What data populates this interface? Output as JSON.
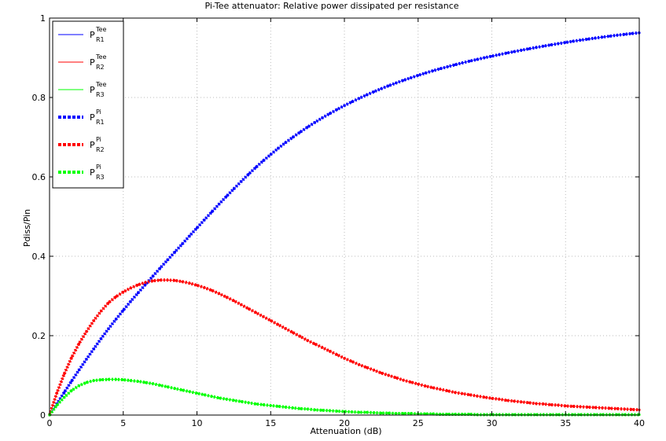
{
  "chart_data": {
    "type": "line",
    "title": "Pi-Tee attenuator: Relative power dissipated per resistance",
    "xlabel": "Attenuation (dB)",
    "ylabel": "Pdiss/Pin",
    "xlim": [
      0,
      40
    ],
    "ylim": [
      0,
      1
    ],
    "xticks": [
      0,
      5,
      10,
      15,
      20,
      25,
      30,
      35,
      40
    ],
    "xtick_labels": [
      "0",
      "5",
      "10",
      "15",
      "20",
      "25",
      "30",
      "35",
      "40"
    ],
    "yticks": [
      0,
      0.2,
      0.4,
      0.6,
      0.8,
      1
    ],
    "ytick_labels": [
      "0",
      "0.2",
      "0.4",
      "0.6",
      "0.8",
      "1"
    ],
    "grid": true,
    "legend_position": "top-left",
    "x": [
      0,
      0.5,
      1,
      1.5,
      2,
      2.5,
      3,
      3.5,
      4,
      4.5,
      5,
      5.5,
      6,
      6.5,
      7,
      7.5,
      8,
      8.5,
      9,
      9.5,
      10,
      10.5,
      11,
      11.5,
      12,
      12.5,
      13,
      13.5,
      14,
      14.5,
      15,
      15.5,
      16,
      16.5,
      17,
      17.5,
      18,
      18.5,
      19,
      19.5,
      20,
      20.5,
      21,
      21.5,
      22,
      22.5,
      23,
      23.5,
      24,
      24.5,
      25,
      25.5,
      26,
      26.5,
      27,
      27.5,
      28,
      28.5,
      29,
      29.5,
      30,
      30.5,
      31,
      31.5,
      32,
      32.5,
      33,
      33.5,
      34,
      34.5,
      35,
      35.5,
      36,
      36.5,
      37,
      37.5,
      38,
      38.5,
      39,
      39.5,
      40
    ],
    "series": [
      {
        "legend_base": "P",
        "legend_sup": "Tee",
        "legend_sub": "R1",
        "color": "#0000ff",
        "style": "thin",
        "values": [
          0,
          0.0288,
          0.0575,
          0.0858,
          0.1135,
          0.1406,
          0.167,
          0.1926,
          0.2174,
          0.2412,
          0.264,
          0.2861,
          0.3076,
          0.3287,
          0.3495,
          0.37,
          0.3904,
          0.4107,
          0.431,
          0.4513,
          0.4715,
          0.4916,
          0.5116,
          0.5314,
          0.5509,
          0.57,
          0.5886,
          0.6067,
          0.6241,
          0.6407,
          0.6565,
          0.6716,
          0.6861,
          0.6998,
          0.7129,
          0.7254,
          0.7373,
          0.7487,
          0.7595,
          0.7698,
          0.7796,
          0.7889,
          0.7978,
          0.8063,
          0.8144,
          0.8221,
          0.8295,
          0.8365,
          0.8432,
          0.8496,
          0.8557,
          0.8615,
          0.8671,
          0.8724,
          0.8775,
          0.8824,
          0.8871,
          0.8916,
          0.8959,
          0.9001,
          0.904,
          0.908,
          0.9118,
          0.9155,
          0.9191,
          0.9226,
          0.926,
          0.9293,
          0.9325,
          0.9356,
          0.9386,
          0.9415,
          0.9443,
          0.947,
          0.9496,
          0.9521,
          0.9545,
          0.9568,
          0.959,
          0.9611,
          0.963
        ]
      },
      {
        "legend_base": "P",
        "legend_sup": "Tee",
        "legend_sub": "R2",
        "color": "#ff0000",
        "style": "thin",
        "values": [
          0,
          0.056,
          0.104,
          0.145,
          0.18,
          0.21,
          0.238,
          0.262,
          0.283,
          0.298,
          0.31,
          0.32,
          0.328,
          0.334,
          0.338,
          0.34,
          0.34,
          0.339,
          0.336,
          0.332,
          0.327,
          0.321,
          0.314,
          0.306,
          0.297,
          0.288,
          0.278,
          0.268,
          0.258,
          0.248,
          0.238,
          0.228,
          0.218,
          0.208,
          0.198,
          0.188,
          0.179,
          0.17,
          0.161,
          0.152,
          0.143,
          0.135,
          0.127,
          0.12,
          0.113,
          0.106,
          0.1,
          0.094,
          0.088,
          0.083,
          0.078,
          0.073,
          0.069,
          0.065,
          0.061,
          0.057,
          0.054,
          0.051,
          0.048,
          0.045,
          0.042,
          0.04,
          0.037,
          0.035,
          0.033,
          0.031,
          0.029,
          0.028,
          0.026,
          0.025,
          0.023,
          0.022,
          0.021,
          0.02,
          0.019,
          0.018,
          0.017,
          0.016,
          0.015,
          0.014,
          0.013
        ]
      },
      {
        "legend_base": "P",
        "legend_sup": "Tee",
        "legend_sub": "R3",
        "color": "#00ff00",
        "style": "thin",
        "values": [
          0,
          0.025,
          0.045,
          0.062,
          0.074,
          0.082,
          0.087,
          0.089,
          0.09,
          0.09,
          0.089,
          0.087,
          0.085,
          0.082,
          0.079,
          0.075,
          0.071,
          0.067,
          0.063,
          0.059,
          0.055,
          0.051,
          0.047,
          0.043,
          0.04,
          0.037,
          0.034,
          0.031,
          0.028,
          0.026,
          0.024,
          0.022,
          0.02,
          0.018,
          0.016,
          0.015,
          0.013,
          0.012,
          0.011,
          0.01,
          0.009,
          0.008,
          0.007,
          0.007,
          0.006,
          0.005,
          0.005,
          0.004,
          0.004,
          0.004,
          0.003,
          0.003,
          0.003,
          0.002,
          0.002,
          0.002,
          0.002,
          0.002,
          0.001,
          0.001,
          0.001,
          0.001,
          0.001,
          0.001,
          0.001,
          0.001,
          0.001,
          0.001,
          0.001,
          0.001,
          0.001,
          0.001,
          0.001,
          0.001,
          0.001,
          0.001,
          0.001,
          0.001,
          0.001,
          0.001,
          0.001
        ]
      },
      {
        "legend_base": "P",
        "legend_sup": "Pi",
        "legend_sub": "R1",
        "color": "#0000ff",
        "style": "dotted-thick",
        "values": [
          0,
          0.0288,
          0.0575,
          0.0858,
          0.1135,
          0.1406,
          0.167,
          0.1926,
          0.2174,
          0.2412,
          0.264,
          0.2861,
          0.3076,
          0.3287,
          0.3495,
          0.37,
          0.3904,
          0.4107,
          0.431,
          0.4513,
          0.4715,
          0.4916,
          0.5116,
          0.5314,
          0.5509,
          0.57,
          0.5886,
          0.6067,
          0.6241,
          0.6407,
          0.6565,
          0.6716,
          0.6861,
          0.6998,
          0.7129,
          0.7254,
          0.7373,
          0.7487,
          0.7595,
          0.7698,
          0.7796,
          0.7889,
          0.7978,
          0.8063,
          0.8144,
          0.8221,
          0.8295,
          0.8365,
          0.8432,
          0.8496,
          0.8557,
          0.8615,
          0.8671,
          0.8724,
          0.8775,
          0.8824,
          0.8871,
          0.8916,
          0.8959,
          0.9001,
          0.904,
          0.908,
          0.9118,
          0.9155,
          0.9191,
          0.9226,
          0.926,
          0.9293,
          0.9325,
          0.9356,
          0.9386,
          0.9415,
          0.9443,
          0.947,
          0.9496,
          0.9521,
          0.9545,
          0.9568,
          0.959,
          0.9611,
          0.963
        ]
      },
      {
        "legend_base": "P",
        "legend_sup": "Pi",
        "legend_sub": "R2",
        "color": "#ff0000",
        "style": "dotted-thick",
        "values": [
          0,
          0.056,
          0.104,
          0.145,
          0.18,
          0.21,
          0.238,
          0.262,
          0.283,
          0.298,
          0.31,
          0.32,
          0.328,
          0.334,
          0.338,
          0.34,
          0.34,
          0.339,
          0.336,
          0.332,
          0.327,
          0.321,
          0.314,
          0.306,
          0.297,
          0.288,
          0.278,
          0.268,
          0.258,
          0.248,
          0.238,
          0.228,
          0.218,
          0.208,
          0.198,
          0.188,
          0.179,
          0.17,
          0.161,
          0.152,
          0.143,
          0.135,
          0.127,
          0.12,
          0.113,
          0.106,
          0.1,
          0.094,
          0.088,
          0.083,
          0.078,
          0.073,
          0.069,
          0.065,
          0.061,
          0.057,
          0.054,
          0.051,
          0.048,
          0.045,
          0.042,
          0.04,
          0.037,
          0.035,
          0.033,
          0.031,
          0.029,
          0.028,
          0.026,
          0.025,
          0.023,
          0.022,
          0.021,
          0.02,
          0.019,
          0.018,
          0.017,
          0.016,
          0.015,
          0.014,
          0.013
        ]
      },
      {
        "legend_base": "P",
        "legend_sup": "Pi",
        "legend_sub": "R3",
        "color": "#00ff00",
        "style": "dotted-thick",
        "values": [
          0,
          0.025,
          0.045,
          0.062,
          0.074,
          0.082,
          0.087,
          0.089,
          0.09,
          0.09,
          0.089,
          0.087,
          0.085,
          0.082,
          0.079,
          0.075,
          0.071,
          0.067,
          0.063,
          0.059,
          0.055,
          0.051,
          0.047,
          0.043,
          0.04,
          0.037,
          0.034,
          0.031,
          0.028,
          0.026,
          0.024,
          0.022,
          0.02,
          0.018,
          0.016,
          0.015,
          0.013,
          0.012,
          0.011,
          0.01,
          0.009,
          0.008,
          0.007,
          0.007,
          0.006,
          0.005,
          0.005,
          0.004,
          0.004,
          0.004,
          0.003,
          0.003,
          0.003,
          0.002,
          0.002,
          0.002,
          0.002,
          0.002,
          0.001,
          0.001,
          0.001,
          0.001,
          0.001,
          0.001,
          0.001,
          0.001,
          0.001,
          0.001,
          0.001,
          0.001,
          0.001,
          0.001,
          0.001,
          0.001,
          0.001,
          0.001,
          0.001,
          0.001,
          0.001,
          0.001,
          0.001
        ]
      }
    ]
  }
}
